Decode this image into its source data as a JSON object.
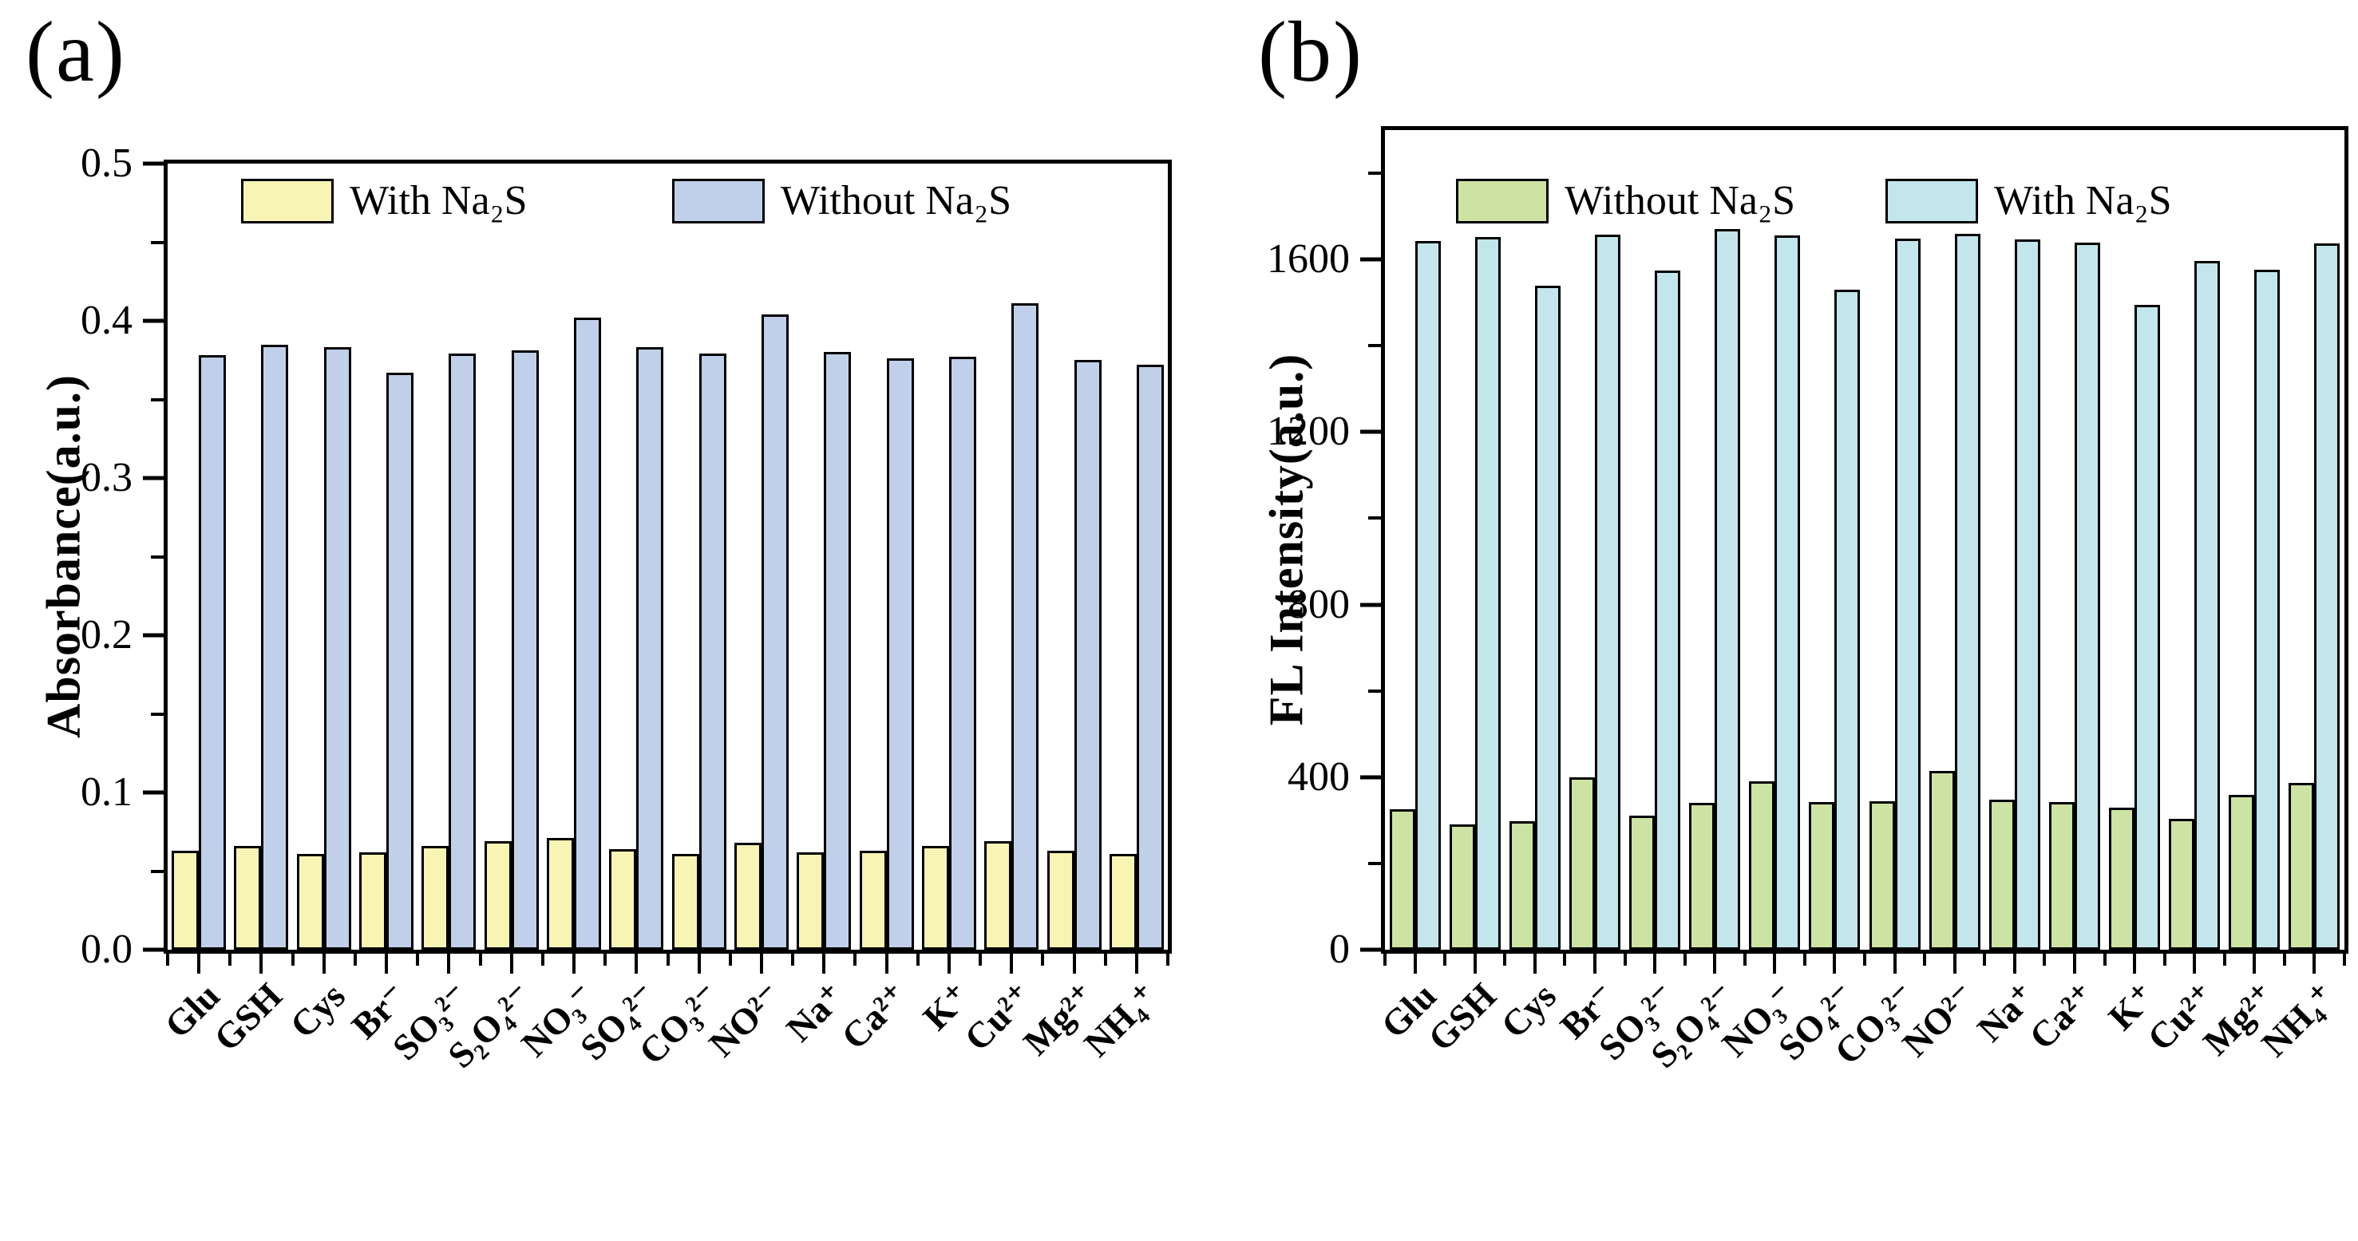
{
  "chart_data": [
    {
      "type": "bar",
      "panel_tag": "(a)",
      "title": "",
      "xlabel": "",
      "ylabel": "Absorbance(a.u.)",
      "ylim": [
        0,
        0.5
      ],
      "yticks": [
        0,
        0.1,
        0.2,
        0.3,
        0.4,
        0.5
      ],
      "ytick_labels": [
        "0.0",
        "0.1",
        "0.2",
        "0.3",
        "0.4",
        "0.5"
      ],
      "minor_ticks": [
        0.05,
        0.15,
        0.25,
        0.35,
        0.45
      ],
      "grid": false,
      "legend_position": "top-inside",
      "categories": [
        "Glu",
        "GSH",
        "Cys",
        "Br⁻",
        "SO₃²⁻",
        "S₂O₄²⁻",
        "NO₃⁻",
        "SO₄²⁻",
        "CO₃²⁻",
        "NO²⁻",
        "Na⁺",
        "Ca²⁺",
        "K⁺",
        "Cu²⁺",
        "Mg²⁺",
        "NH₄⁺"
      ],
      "series": [
        {
          "name": "With Na₂S",
          "color": "#f7f4b4",
          "edge_color": "#000000",
          "values": [
            0.063,
            0.066,
            0.061,
            0.062,
            0.066,
            0.069,
            0.071,
            0.064,
            0.061,
            0.068,
            0.062,
            0.063,
            0.066,
            0.069,
            0.063,
            0.061
          ]
        },
        {
          "name": "Without Na₂S",
          "color": "#c0d0ea",
          "edge_color": "#000000",
          "values": [
            0.378,
            0.385,
            0.383,
            0.367,
            0.379,
            0.381,
            0.402,
            0.383,
            0.379,
            0.404,
            0.38,
            0.376,
            0.377,
            0.411,
            0.375,
            0.372
          ]
        }
      ]
    },
    {
      "type": "bar",
      "panel_tag": "(b)",
      "title": "",
      "xlabel": "",
      "ylabel": "FL Intensity(a.u.)",
      "ylim": [
        0,
        1900
      ],
      "yticks": [
        0,
        400,
        800,
        1200,
        1600
      ],
      "ytick_labels": [
        "0",
        "400",
        "800",
        "1200",
        "1600"
      ],
      "minor_ticks": [
        200,
        600,
        1000,
        1400,
        1800
      ],
      "grid": false,
      "legend_position": "top-inside",
      "categories": [
        "Glu",
        "GSH",
        "Cys",
        "Br⁻",
        "SO₃²⁻",
        "S₂O₄²⁻",
        "NO₃⁻",
        "SO₄²⁻",
        "CO₃²⁻",
        "NO²⁻",
        "Na⁺",
        "Ca²⁺",
        "K⁺",
        "Cu²⁺",
        "Mg²⁺",
        "NH₄⁺"
      ],
      "series": [
        {
          "name": "Without Na₂S",
          "color": "#cde3a3",
          "edge_color": "#000000",
          "values": [
            325,
            290,
            297,
            400,
            310,
            340,
            390,
            343,
            344,
            415,
            347,
            342,
            330,
            303,
            358,
            387
          ]
        },
        {
          "name": "With Na₂S",
          "color": "#c2e6ec",
          "edge_color": "#000000",
          "values": [
            1642,
            1652,
            1540,
            1658,
            1574,
            1670,
            1656,
            1530,
            1648,
            1660,
            1646,
            1640,
            1494,
            1597,
            1576,
            1638
          ]
        }
      ]
    }
  ]
}
